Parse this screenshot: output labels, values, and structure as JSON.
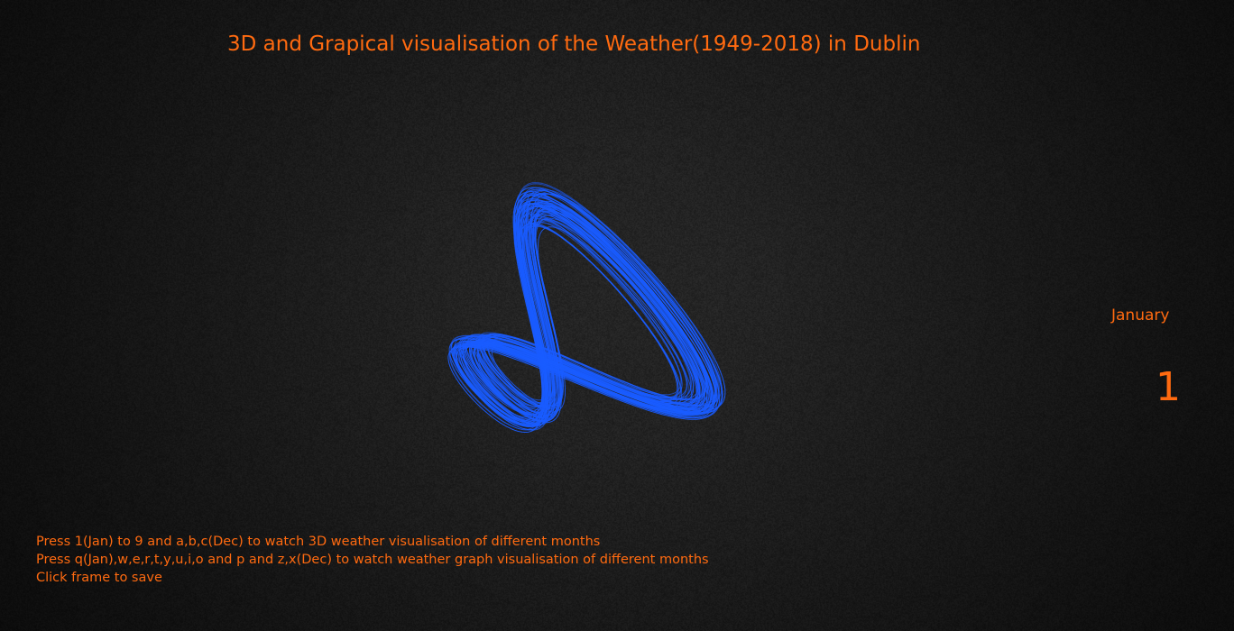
{
  "app": {
    "title": "3D and Grapical visualisation of the Weather(1949-2018) in Dublin"
  },
  "month_display": {
    "name": "January",
    "number": "1"
  },
  "instructions": {
    "line1": "Press 1(Jan) to 9 and a,b,c(Dec) to watch 3D weather visualisation of different months",
    "line2": "Press q(Jan),w,e,r,t,y,u,i,o and p and z,x(Dec) to watch weather graph visualisation of different months",
    "line3": "Click frame to save"
  },
  "colors": {
    "text_accent": "#ff6a10",
    "stroke": "#1a5cff",
    "background": "#1f1f1f"
  }
}
